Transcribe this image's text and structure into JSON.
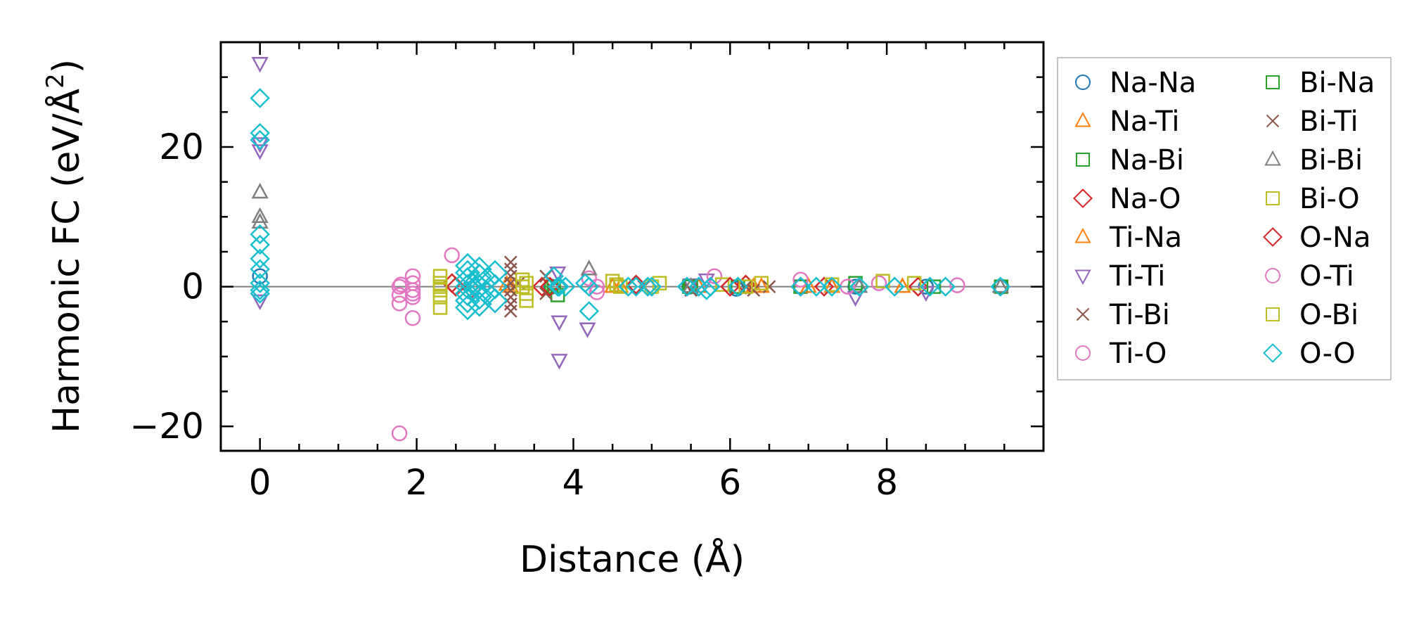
{
  "chart_data": {
    "type": "scatter",
    "xlabel": "Distance (Å)",
    "ylabel_main": "Harmonic FC (eV/Å",
    "ylabel_sup": "2",
    "ylabel_close": ")",
    "xlim": [
      -0.5,
      10.0
    ],
    "ylim": [
      -23.5,
      35.0
    ],
    "xticks": [
      0,
      2,
      4,
      6,
      8
    ],
    "xtick_labels": [
      "0",
      "2",
      "4",
      "6",
      "8"
    ],
    "xminor": [
      -0.5,
      0.5,
      1,
      1.5,
      2.5,
      3,
      3.5,
      4.5,
      5,
      5.5,
      6.5,
      7,
      7.5,
      8.5,
      9,
      9.5
    ],
    "yticks": [
      -20,
      0,
      20
    ],
    "ytick_labels": [
      "−20",
      "0",
      "20"
    ],
    "yminor": [
      -15,
      -10,
      -5,
      5,
      10,
      15,
      25,
      30
    ],
    "zero_line": true,
    "legend_position": "outside-right",
    "series": [
      {
        "name": "Na-Na",
        "marker": "circle",
        "color": "#1f77b4",
        "points": [
          [
            0,
            1.5
          ],
          [
            3.72,
            0
          ],
          [
            5.48,
            0
          ],
          [
            6.08,
            -0.3
          ],
          [
            6.9,
            0
          ],
          [
            7.6,
            0
          ],
          [
            8.5,
            0
          ],
          [
            9.46,
            0
          ]
        ]
      },
      {
        "name": "Na-Ti",
        "marker": "triangle-up",
        "color": "#ff7f0e",
        "points": [
          [
            3.2,
            0
          ],
          [
            4.6,
            0
          ],
          [
            5.6,
            0
          ],
          [
            6.4,
            0
          ],
          [
            7.3,
            0
          ],
          [
            8.2,
            0
          ]
        ]
      },
      {
        "name": "Na-Bi",
        "marker": "square",
        "color": "#2ca02c",
        "points": [
          [
            3.72,
            0
          ],
          [
            3.8,
            -1.2
          ],
          [
            5.48,
            0
          ],
          [
            6.9,
            0
          ],
          [
            7.6,
            0.5
          ],
          [
            9.46,
            0
          ]
        ]
      },
      {
        "name": "Na-O",
        "marker": "diamond",
        "color": "#d62728",
        "points": [
          [
            2.45,
            0.5
          ],
          [
            2.7,
            -0.3
          ],
          [
            3.6,
            0
          ],
          [
            4.8,
            0.3
          ],
          [
            6.2,
            0.3
          ],
          [
            7.2,
            0
          ],
          [
            8.4,
            0
          ]
        ]
      },
      {
        "name": "Ti-Na",
        "marker": "triangle-up",
        "color": "#ff7f0e",
        "points": [
          [
            3.15,
            0.3
          ],
          [
            4.5,
            0
          ],
          [
            6.3,
            0
          ],
          [
            7.0,
            0
          ]
        ]
      },
      {
        "name": "Ti-Ti",
        "marker": "triangle-down",
        "color": "#9467bd",
        "points": [
          [
            0,
            32
          ],
          [
            0,
            20.5
          ],
          [
            0,
            19.5
          ],
          [
            0,
            -2
          ],
          [
            3.8,
            2
          ],
          [
            3.82,
            -5
          ],
          [
            3.82,
            -10.5
          ],
          [
            4.18,
            -6
          ],
          [
            5.5,
            0.3
          ],
          [
            5.7,
            1
          ],
          [
            7.6,
            -1.5
          ],
          [
            8.5,
            -0.8
          ]
        ]
      },
      {
        "name": "Ti-Bi",
        "marker": "x",
        "color": "#8c564b",
        "points": [
          [
            3.2,
            3.5
          ],
          [
            3.2,
            2.5
          ],
          [
            3.2,
            1.5
          ],
          [
            3.2,
            0.5
          ],
          [
            3.2,
            -0.5
          ],
          [
            3.2,
            -1.5
          ],
          [
            3.2,
            -2.5
          ],
          [
            3.2,
            -3.5
          ],
          [
            3.65,
            1.5
          ],
          [
            3.65,
            -1
          ],
          [
            5.5,
            -0.5
          ],
          [
            6.3,
            -0.5
          ],
          [
            6.5,
            0
          ]
        ]
      },
      {
        "name": "Ti-O",
        "marker": "circle",
        "color": "#e377c2",
        "points": [
          [
            1.78,
            -21
          ],
          [
            1.78,
            0
          ],
          [
            1.78,
            -1.2
          ],
          [
            1.78,
            -2.4
          ],
          [
            1.95,
            1.5
          ],
          [
            1.95,
            0.5
          ],
          [
            1.95,
            -0.5
          ],
          [
            1.95,
            -1.5
          ],
          [
            1.95,
            -4.5
          ],
          [
            2.45,
            4.5
          ],
          [
            4.2,
            1.2
          ],
          [
            4.3,
            -0.8
          ],
          [
            5.8,
            1.5
          ],
          [
            6.9,
            1
          ],
          [
            7.9,
            0.5
          ],
          [
            8.9,
            0.2
          ]
        ]
      },
      {
        "name": "Bi-Na",
        "marker": "square",
        "color": "#2ca02c",
        "points": [
          [
            3.75,
            0
          ],
          [
            5.5,
            0
          ],
          [
            6.1,
            0
          ],
          [
            8.6,
            0
          ]
        ]
      },
      {
        "name": "Bi-Ti",
        "marker": "x",
        "color": "#8c564b",
        "points": [
          [
            3.3,
            0.5
          ],
          [
            4.9,
            0
          ],
          [
            5.5,
            -0.5
          ],
          [
            6.2,
            0
          ]
        ]
      },
      {
        "name": "Bi-Bi",
        "marker": "triangle-up",
        "color": "#7f7f7f",
        "points": [
          [
            0,
            13.5
          ],
          [
            0,
            10
          ],
          [
            0,
            9.2
          ],
          [
            4.2,
            2.5
          ],
          [
            5.5,
            0
          ],
          [
            7.65,
            0
          ],
          [
            9.45,
            0
          ]
        ]
      },
      {
        "name": "Bi-O",
        "marker": "square",
        "color": "#bcbd22",
        "points": [
          [
            2.3,
            1.5
          ],
          [
            2.3,
            0.5
          ],
          [
            2.3,
            -0.5
          ],
          [
            2.3,
            -1.5
          ],
          [
            2.3,
            -3
          ],
          [
            3.35,
            1
          ],
          [
            3.35,
            0
          ],
          [
            3.4,
            -1
          ],
          [
            3.4,
            -2
          ],
          [
            4.5,
            0.8
          ],
          [
            4.6,
            0
          ],
          [
            5.1,
            0.5
          ],
          [
            5.9,
            0.3
          ],
          [
            6.4,
            0.5
          ],
          [
            7.3,
            0.3
          ],
          [
            7.95,
            0.8
          ],
          [
            8.35,
            0.5
          ]
        ]
      },
      {
        "name": "O-Na",
        "marker": "diamond",
        "color": "#d62728",
        "points": [
          [
            2.5,
            0
          ],
          [
            3.7,
            0
          ],
          [
            6.0,
            0
          ],
          [
            6.9,
            0
          ]
        ]
      },
      {
        "name": "O-Ti",
        "marker": "circle",
        "color": "#e377c2",
        "points": [
          [
            1.8,
            0.3
          ],
          [
            1.95,
            -1
          ],
          [
            4.3,
            0
          ],
          [
            7.5,
            0
          ]
        ]
      },
      {
        "name": "O-Bi",
        "marker": "square",
        "color": "#bcbd22",
        "points": [
          [
            2.3,
            0
          ],
          [
            3.4,
            0.5
          ],
          [
            4.55,
            0.3
          ],
          [
            5.0,
            0
          ],
          [
            6.2,
            0
          ]
        ]
      },
      {
        "name": "O-O",
        "marker": "diamond",
        "color": "#17becf",
        "points": [
          [
            0,
            27
          ],
          [
            0,
            22
          ],
          [
            0,
            21
          ],
          [
            0,
            7.5
          ],
          [
            0,
            6
          ],
          [
            0,
            4
          ],
          [
            0,
            2.5
          ],
          [
            0,
            0.5
          ],
          [
            0,
            -0.5
          ],
          [
            0,
            -1
          ],
          [
            2.65,
            3
          ],
          [
            2.65,
            2
          ],
          [
            2.65,
            1
          ],
          [
            2.65,
            0
          ],
          [
            2.65,
            -1
          ],
          [
            2.65,
            -2
          ],
          [
            2.65,
            -3
          ],
          [
            2.75,
            0.5
          ],
          [
            2.75,
            -0.5
          ],
          [
            2.8,
            2.5
          ],
          [
            2.8,
            1.5
          ],
          [
            2.8,
            0
          ],
          [
            2.8,
            -1.5
          ],
          [
            2.8,
            -2.5
          ],
          [
            2.9,
            1
          ],
          [
            2.9,
            -1
          ],
          [
            3.0,
            2
          ],
          [
            3.0,
            0
          ],
          [
            3.0,
            -2
          ],
          [
            3.75,
            1.5
          ],
          [
            3.8,
            0
          ],
          [
            3.82,
            0
          ],
          [
            3.9,
            0
          ],
          [
            4.15,
            0.5
          ],
          [
            4.2,
            -3.5
          ],
          [
            4.2,
            0
          ],
          [
            4.7,
            0
          ],
          [
            4.8,
            0
          ],
          [
            4.95,
            0
          ],
          [
            5.0,
            0
          ],
          [
            5.45,
            0
          ],
          [
            5.6,
            0
          ],
          [
            5.7,
            -0.5
          ],
          [
            5.75,
            0
          ],
          [
            6.1,
            0
          ],
          [
            6.9,
            0
          ],
          [
            7.1,
            0
          ],
          [
            7.3,
            0
          ],
          [
            7.65,
            0
          ],
          [
            8.1,
            0
          ],
          [
            8.55,
            0
          ],
          [
            8.75,
            0
          ],
          [
            9.45,
            0
          ]
        ]
      }
    ]
  }
}
